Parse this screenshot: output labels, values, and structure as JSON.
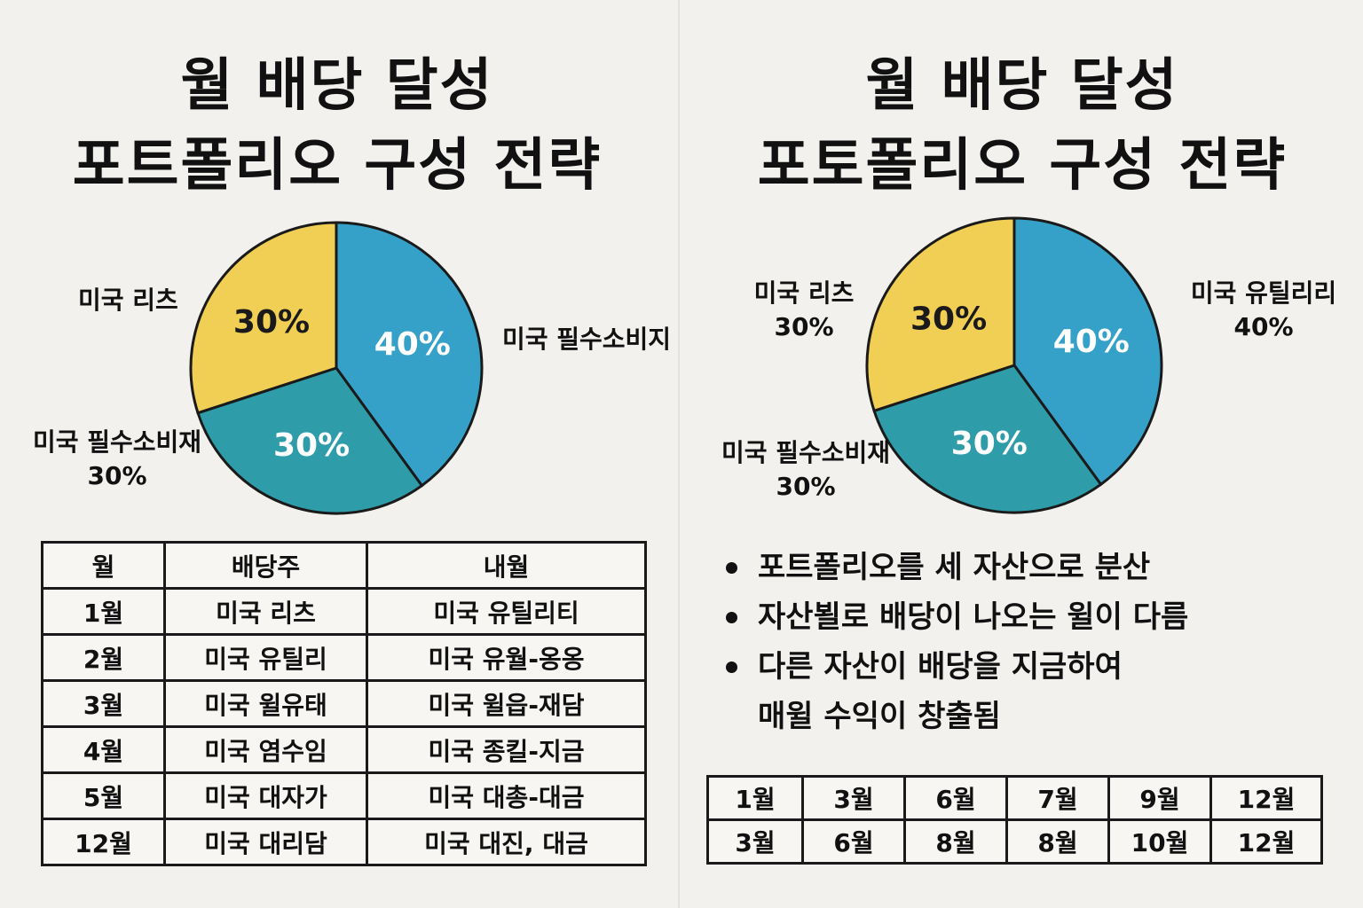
{
  "colors": {
    "yellow": "#f1cf55",
    "blue": "#36a1c8",
    "teal": "#2f9da9",
    "pct_dark": "#1a1a1a",
    "pct_light": "#ffffff"
  },
  "left": {
    "title_line1": "월 배당 달성",
    "title_line2": "포트폴리오 구성 전략",
    "labels": {
      "reits": "미국 리츠",
      "staples_top": "미국 필수소비지",
      "staples_bottom_name": "미국 필수소비재",
      "staples_bottom_pct": "30%"
    },
    "table": {
      "headers": [
        "월",
        "배당주",
        "내월"
      ],
      "rows": [
        [
          "1월",
          "미국 리츠",
          "미국 유틸리티"
        ],
        [
          "2월",
          "미국 유틸리",
          "미국 유월-옹옹"
        ],
        [
          "3월",
          "미국 윌유태",
          "미국 윌읍-재담"
        ],
        [
          "4월",
          "미국 염수임",
          "미국 종킬-지금"
        ],
        [
          "5월",
          "미국 대자가",
          "미국 대총-대금"
        ],
        [
          "12월",
          "미국 대리담",
          "미국 대진, 대금"
        ]
      ]
    }
  },
  "right": {
    "title_line1": "월 배당 달성",
    "title_line2": "포토폴리오 구성 전략",
    "labels": {
      "reits_name": "미국 리츠",
      "reits_pct": "30%",
      "util_name": "미국 유틸리리",
      "util_pct": "40%",
      "staples_name": "미국 필수소비재",
      "staples_pct": "30%"
    },
    "bullets": [
      [
        "포트폴리오를 세 자산으로 분산"
      ],
      [
        "자산뵐로 배당이 나오는 윌이 다름"
      ],
      [
        "다른 자산이 배당을 지금하여",
        "매윌 수익이 창출됨"
      ]
    ],
    "schedule": [
      [
        "1월",
        "3월",
        "6월",
        "7월",
        "9월",
        "12월"
      ],
      [
        "3월",
        "6월",
        "8월",
        "8월",
        "10월",
        "12월"
      ]
    ]
  },
  "chart_data": [
    {
      "type": "pie",
      "title": "월 배당 달성 포트폴리오 구성 전략",
      "slices": [
        {
          "label": "미국 필수소비지",
          "value": 40,
          "display": "40%",
          "color": "#36a1c8"
        },
        {
          "label": "미국 필수소비재",
          "value": 30,
          "display": "30%",
          "color": "#2f9da9"
        },
        {
          "label": "미국 리츠",
          "value": 30,
          "display": "30%",
          "color": "#f1cf55"
        }
      ]
    },
    {
      "type": "pie",
      "title": "월 배당 달성 포토폴리오 구성 전략",
      "slices": [
        {
          "label": "미국 유틸리리",
          "value": 40,
          "display": "40%",
          "color": "#36a1c8"
        },
        {
          "label": "미국 필수소비재",
          "value": 30,
          "display": "30%",
          "color": "#2f9da9"
        },
        {
          "label": "미국 리츠",
          "value": 30,
          "display": "30%",
          "color": "#f1cf55"
        }
      ]
    }
  ]
}
